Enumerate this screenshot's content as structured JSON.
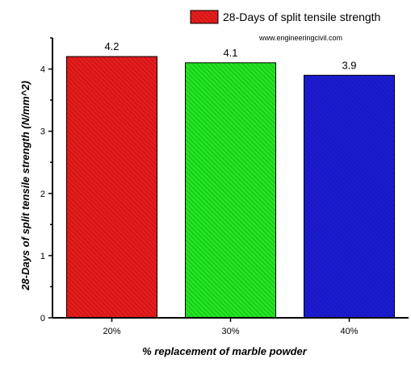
{
  "chart_data": {
    "type": "bar",
    "categories": [
      "20%",
      "30%",
      "40%"
    ],
    "series": [
      {
        "name": "28-Days of split tensile strength",
        "values": [
          4.2,
          4.1,
          3.9
        ]
      }
    ],
    "data_labels": [
      "4.2",
      "4.1",
      "3.9"
    ],
    "bar_colors": [
      "#e81c1c",
      "#22e622",
      "#1c1cd6"
    ],
    "xlabel": "% replacement of marble powder",
    "ylabel": "28-Days of split tensile strength (N/mm^2)",
    "ylim": [
      0,
      4.5
    ],
    "yticks": [
      "0",
      "1",
      "2",
      "3",
      "4"
    ],
    "grid": false,
    "legend": "top-right",
    "legend_label": "28-Days of split tensile strength",
    "legend_color": "#e81c1c",
    "pattern": "diagonal-hatch"
  },
  "watermark": "www.engineeringcivil.com"
}
